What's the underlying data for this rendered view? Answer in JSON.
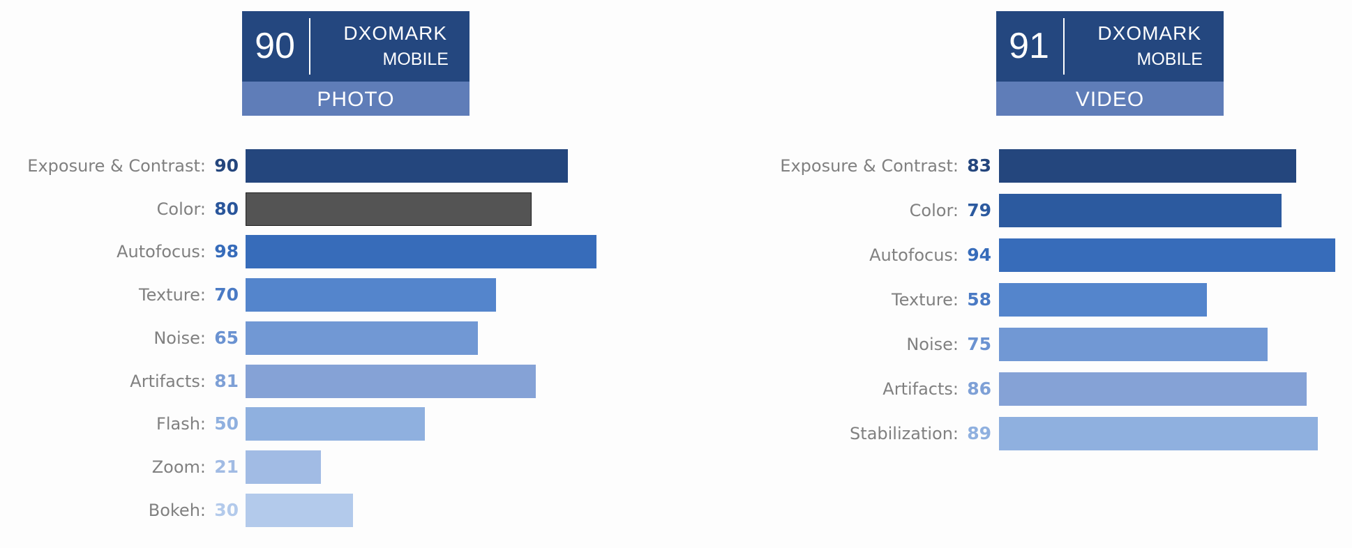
{
  "badge_brand": "DXOMARK",
  "badge_sub": "MOBILE",
  "photo": {
    "score": "90",
    "category": "PHOTO",
    "separator": ":"
  },
  "video": {
    "score": "91",
    "category": "VIDEO",
    "separator": ":"
  },
  "chart_data": [
    {
      "type": "bar",
      "orientation": "horizontal",
      "categories": [
        "Exposure & Contrast",
        "Color",
        "Autofocus",
        "Texture",
        "Noise",
        "Artifacts",
        "Flash",
        "Zoom",
        "Bokeh"
      ],
      "values": [
        90,
        80,
        98,
        70,
        65,
        81,
        50,
        21,
        30
      ],
      "colors": [
        "#24467d",
        "#545454",
        "#376cba",
        "#5485cc",
        "#7198d4",
        "#85a2d6",
        "#8fb0df",
        "#a1bbe4",
        "#b3caeb"
      ],
      "value_colors": [
        "#24467d",
        "#2a569b",
        "#376cba",
        "#4a7ac4",
        "#6a92d1",
        "#7ea0d6",
        "#8fb0df",
        "#a1bbe4",
        "#b3caeb"
      ],
      "xlim": [
        0,
        100
      ]
    },
    {
      "type": "bar",
      "orientation": "horizontal",
      "categories": [
        "Exposure & Contrast",
        "Color",
        "Autofocus",
        "Texture",
        "Noise",
        "Artifacts",
        "Stabilization"
      ],
      "values": [
        83,
        79,
        94,
        58,
        75,
        86,
        89
      ],
      "colors": [
        "#24467d",
        "#2c5a9f",
        "#376cba",
        "#5485cc",
        "#7198d4",
        "#85a2d6",
        "#8fb0df"
      ],
      "value_colors": [
        "#24467d",
        "#2c5a9f",
        "#376cba",
        "#4a7ac4",
        "#6a92d1",
        "#7ea0d6",
        "#8fb0df"
      ],
      "xlim": [
        0,
        100
      ]
    }
  ]
}
